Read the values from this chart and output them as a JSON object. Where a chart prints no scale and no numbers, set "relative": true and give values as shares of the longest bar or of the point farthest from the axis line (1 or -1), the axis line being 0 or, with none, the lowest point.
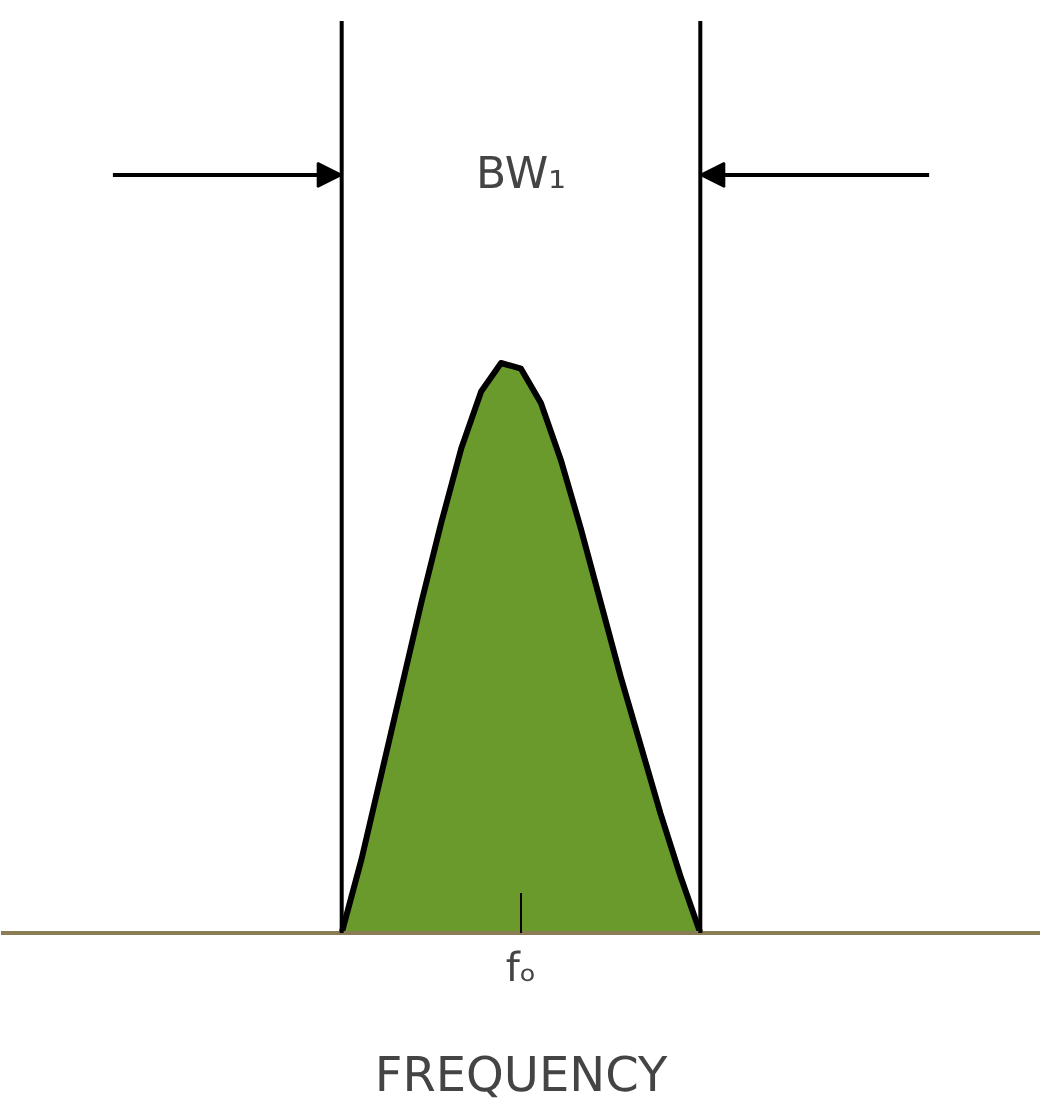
{
  "chart_data": {
    "type": "area",
    "relative": true,
    "xlabel": "FREQUENCY",
    "categories": [
      null,
      null,
      null,
      null,
      null,
      null,
      null,
      null,
      null,
      null,
      null,
      null,
      null,
      null,
      null,
      null,
      null,
      null,
      null
    ],
    "series": [
      {
        "color": "#6a9a2c",
        "values": [
          0,
          0.13,
          0.28,
          0.43,
          0.58,
          0.72,
          0.85,
          0.95,
          1.0,
          0.99,
          0.93,
          0.83,
          0.71,
          0.58,
          0.45,
          0.33,
          0.21,
          0.1,
          0
        ]
      }
    ],
    "annotations": [
      "BW₁",
      "fₒ"
    ],
    "grid": false
  }
}
